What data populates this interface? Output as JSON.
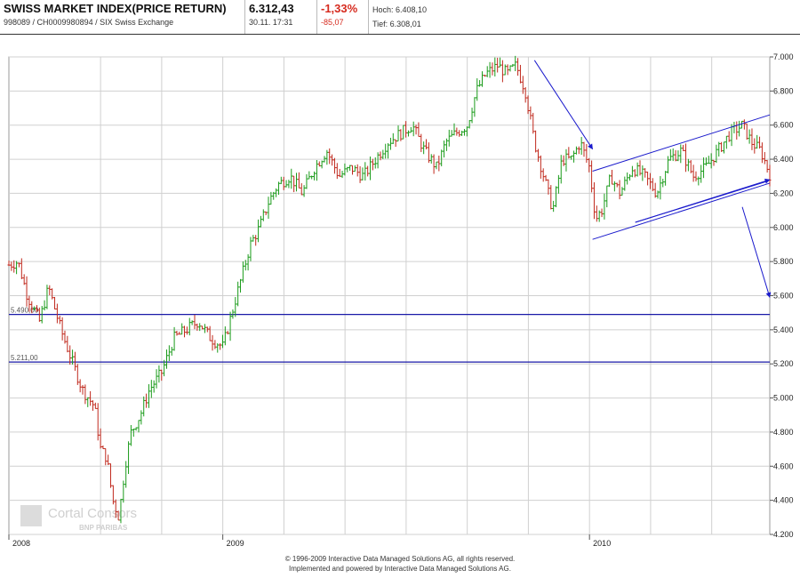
{
  "header": {
    "title": "SWISS MARKET INDEX(PRICE RETURN)",
    "subtitle": "998089 / CH0009980894 / SIX Swiss Exchange",
    "price": "6.312,43",
    "datetime": "30.11. 17:31",
    "change_pct": "-1,33%",
    "change_abs": "-85,07",
    "high": "Hoch: 6.408,10",
    "low": "Tief: 6.308,01"
  },
  "footer": {
    "line1": "© 1996-2009 Interactive Data Managed Solutions AG, all rights reserved.",
    "line2": "Implemented and powered by  Interactive Data Managed Solutions AG."
  },
  "watermark": {
    "name": "Cortal Consors",
    "sub": "BNP PARIBAS"
  },
  "colors": {
    "up": "#1a9b1a",
    "down": "#c0281c",
    "hline": "#1a1aa8",
    "arrow": "#1a1acc",
    "grid": "#d0d0d0"
  },
  "chart_data": {
    "type": "ohlc",
    "x_unit": "months since Jan 2008",
    "xlim": [
      0,
      24.9
    ],
    "ylim": [
      4200,
      7000
    ],
    "y_ticks": [
      4200,
      4400,
      4600,
      4800,
      5000,
      5200,
      5400,
      5600,
      5800,
      6000,
      6200,
      6400,
      6600,
      6800,
      7000
    ],
    "y_tick_labels": [
      "4.200",
      "4.400",
      "4.600",
      "4.800",
      "5.000",
      "5.200",
      "5.400",
      "5.600",
      "5.800",
      "6.000",
      "6.200",
      "6.400",
      "6.600",
      "6.800",
      "7.000"
    ],
    "x_ticks": [
      0,
      7,
      19
    ],
    "x_tick_labels": [
      "2008",
      "2009",
      "2010"
    ],
    "horizontal_lines": [
      {
        "value": 5490,
        "label": "5.490,00"
      },
      {
        "value": 5211,
        "label": "5.211,00"
      }
    ],
    "price_path": [
      [
        0.0,
        5780
      ],
      [
        0.3,
        5800
      ],
      [
        0.6,
        5600
      ],
      [
        1.0,
        5450
      ],
      [
        1.3,
        5650
      ],
      [
        1.7,
        5400
      ],
      [
        2.0,
        5250
      ],
      [
        2.4,
        5050
      ],
      [
        2.8,
        4950
      ],
      [
        3.0,
        4700
      ],
      [
        3.2,
        4650
      ],
      [
        3.4,
        4400
      ],
      [
        3.6,
        4300
      ],
      [
        3.8,
        4600
      ],
      [
        4.0,
        4800
      ],
      [
        4.3,
        4900
      ],
      [
        4.6,
        5050
      ],
      [
        5.0,
        5150
      ],
      [
        5.4,
        5350
      ],
      [
        5.8,
        5400
      ],
      [
        6.2,
        5450
      ],
      [
        6.6,
        5350
      ],
      [
        7.0,
        5300
      ],
      [
        7.3,
        5500
      ],
      [
        7.6,
        5700
      ],
      [
        7.9,
        5900
      ],
      [
        8.2,
        6000
      ],
      [
        8.5,
        6150
      ],
      [
        8.8,
        6250
      ],
      [
        9.2,
        6300
      ],
      [
        9.6,
        6200
      ],
      [
        10.0,
        6350
      ],
      [
        10.4,
        6450
      ],
      [
        10.8,
        6300
      ],
      [
        11.2,
        6350
      ],
      [
        11.6,
        6300
      ],
      [
        12.0,
        6400
      ],
      [
        12.4,
        6500
      ],
      [
        12.8,
        6550
      ],
      [
        13.2,
        6600
      ],
      [
        13.6,
        6450
      ],
      [
        14.0,
        6350
      ],
      [
        14.3,
        6500
      ],
      [
        14.6,
        6550
      ],
      [
        15.0,
        6600
      ],
      [
        15.3,
        6800
      ],
      [
        15.6,
        6900
      ],
      [
        16.0,
        6950
      ],
      [
        16.3,
        6900
      ],
      [
        16.6,
        6950
      ],
      [
        16.9,
        6800
      ],
      [
        17.2,
        6500
      ],
      [
        17.5,
        6300
      ],
      [
        17.8,
        6100
      ],
      [
        18.1,
        6400
      ],
      [
        18.4,
        6400
      ],
      [
        18.7,
        6500
      ],
      [
        19.0,
        6350
      ],
      [
        19.2,
        6050
      ],
      [
        19.4,
        6100
      ],
      [
        19.7,
        6300
      ],
      [
        20.0,
        6200
      ],
      [
        20.4,
        6350
      ],
      [
        20.8,
        6300
      ],
      [
        21.2,
        6200
      ],
      [
        21.6,
        6400
      ],
      [
        22.0,
        6450
      ],
      [
        22.4,
        6300
      ],
      [
        22.8,
        6350
      ],
      [
        23.2,
        6450
      ],
      [
        23.6,
        6550
      ],
      [
        24.0,
        6600
      ],
      [
        24.3,
        6500
      ],
      [
        24.6,
        6450
      ],
      [
        24.9,
        6312
      ]
    ],
    "trend_lines": [
      {
        "from": [
          19.1,
          6330
        ],
        "to": [
          24.9,
          6660
        ]
      },
      {
        "from": [
          19.1,
          5930
        ],
        "to": [
          24.9,
          6260
        ]
      },
      {
        "from": [
          20.5,
          6030
        ],
        "to": [
          24.8,
          6270
        ]
      }
    ],
    "arrows": [
      {
        "from": [
          17.2,
          6980
        ],
        "to": [
          19.1,
          6460
        ]
      },
      {
        "from": [
          20.5,
          6030
        ],
        "to": [
          24.9,
          6280
        ]
      },
      {
        "from": [
          24.0,
          6120
        ],
        "to": [
          24.9,
          5590
        ]
      }
    ]
  }
}
